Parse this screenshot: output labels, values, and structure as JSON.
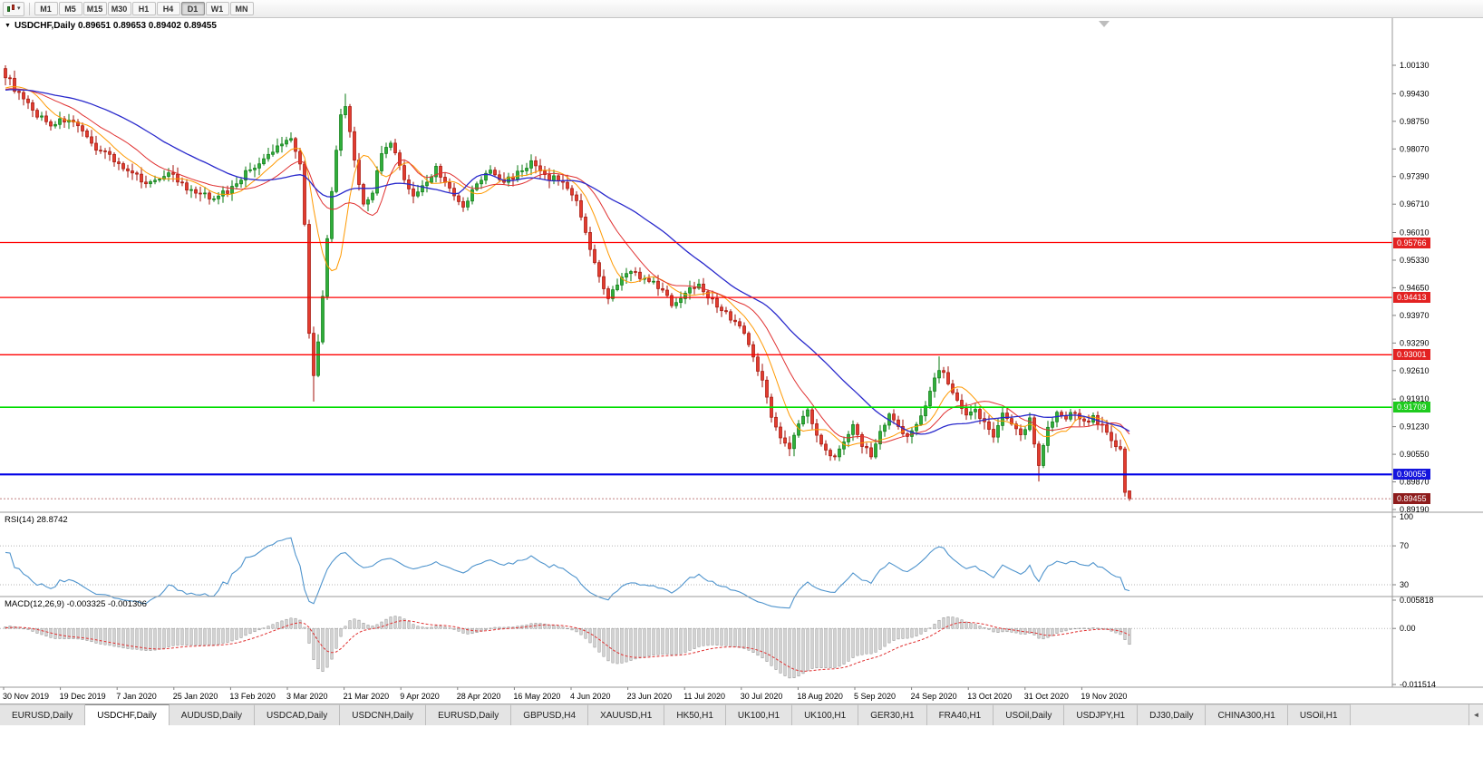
{
  "toolbar": {
    "timeframes": [
      {
        "label": "M1",
        "active": false
      },
      {
        "label": "M5",
        "active": false
      },
      {
        "label": "M15",
        "active": false
      },
      {
        "label": "M30",
        "active": false
      },
      {
        "label": "H1",
        "active": false
      },
      {
        "label": "H4",
        "active": false
      },
      {
        "label": "D1",
        "active": true
      },
      {
        "label": "W1",
        "active": false
      },
      {
        "label": "MN",
        "active": false
      }
    ],
    "dropdown_caret": "▾"
  },
  "chart_window": {
    "collapse_icon": "▼",
    "title": "USDCHF,Daily 0.89651 0.89653 0.89402 0.89455"
  },
  "chart_data": {
    "type": "candlestick",
    "symbol": "USDCHF",
    "timeframe": "Daily",
    "ohlc_display": {
      "open": "0.89651",
      "high": "0.89653",
      "low": "0.89402",
      "close": "0.89455"
    },
    "price_axis_labels": [
      "1.00130",
      "0.99430",
      "0.98750",
      "0.98070",
      "0.97390",
      "0.96710",
      "0.96010",
      "0.95330",
      "0.94650",
      "0.93970",
      "0.93290",
      "0.92610",
      "0.91910",
      "0.91230",
      "0.90550",
      "0.89870",
      "0.89190"
    ],
    "date_axis_labels": [
      "30 Nov 2019",
      "19 Dec 2019",
      "7 Jan 2020",
      "25 Jan 2020",
      "13 Feb 2020",
      "3 Mar 2020",
      "21 Mar 2020",
      "9 Apr 2020",
      "28 Apr 2020",
      "16 May 2020",
      "4 Jun 2020",
      "23 Jun 2020",
      "11 Jul 2020",
      "30 Jul 2020",
      "18 Aug 2020",
      "5 Sep 2020",
      "24 Sep 2020",
      "13 Oct 2020",
      "31 Oct 2020",
      "19 Nov 2020"
    ],
    "horizontal_lines": [
      {
        "price": 0.95766,
        "label": "0.95766",
        "line_color": "#ff0000",
        "label_bg": "#e32222",
        "width": 1.3
      },
      {
        "price": 0.94413,
        "label": "0.94413",
        "line_color": "#ff0000",
        "label_bg": "#e32222",
        "width": 1.3
      },
      {
        "price": 0.93001,
        "label": "0.93001",
        "line_color": "#ff0000",
        "label_bg": "#e32222",
        "width": 1.3
      },
      {
        "price": 0.91709,
        "label": "0.91709",
        "line_color": "#00dd00",
        "label_bg": "#1ecb1e",
        "width": 1.6
      },
      {
        "price": 0.90055,
        "label": "0.90055",
        "line_color": "#0000e6",
        "label_bg": "#1515dd",
        "width": 2.2
      }
    ],
    "current_price": {
      "value": 0.89455,
      "label": "0.89455",
      "line_color": "#c08080",
      "label_bg": "#8e1c1c"
    },
    "colors": {
      "up_fill": "#2fae3a",
      "up_stroke": "#0a7a12",
      "down_fill": "#e23b2e",
      "down_stroke": "#a31208",
      "background": "#ffffff",
      "axis_text": "#000000",
      "separator": "#9a9a9a"
    },
    "candles": {
      "count": 249,
      "prehistory_count": 40,
      "prehistory_price": 0.995,
      "jitter": 0.0016,
      "wick": 0.0019,
      "close_anchors": [
        [
          0,
          0.999
        ],
        [
          3,
          0.994
        ],
        [
          6,
          0.99
        ],
        [
          10,
          0.9868
        ],
        [
          14,
          0.9882
        ],
        [
          19,
          0.9818
        ],
        [
          23,
          0.9792
        ],
        [
          27,
          0.9748
        ],
        [
          32,
          0.9722
        ],
        [
          36,
          0.9752
        ],
        [
          40,
          0.9705
        ],
        [
          45,
          0.9688
        ],
        [
          49,
          0.9702
        ],
        [
          53,
          0.9748
        ],
        [
          57,
          0.9778
        ],
        [
          60,
          0.9812
        ],
        [
          63,
          0.9838
        ],
        [
          65,
          0.977
        ],
        [
          66,
          0.962
        ],
        [
          67,
          0.936
        ],
        [
          68,
          0.9255
        ],
        [
          69,
          0.933
        ],
        [
          70,
          0.944
        ],
        [
          71,
          0.958
        ],
        [
          72,
          0.97
        ],
        [
          73,
          0.981
        ],
        [
          74,
          0.9885
        ],
        [
          75,
          0.9905
        ],
        [
          77,
          0.978
        ],
        [
          79,
          0.9665
        ],
        [
          81,
          0.9705
        ],
        [
          83,
          0.979
        ],
        [
          85,
          0.9822
        ],
        [
          87,
          0.976
        ],
        [
          90,
          0.969
        ],
        [
          93,
          0.9725
        ],
        [
          95,
          0.9762
        ],
        [
          98,
          0.9705
        ],
        [
          101,
          0.966
        ],
        [
          104,
          0.9722
        ],
        [
          107,
          0.9752
        ],
        [
          110,
          0.9725
        ],
        [
          113,
          0.9748
        ],
        [
          116,
          0.9772
        ],
        [
          119,
          0.9738
        ],
        [
          122,
          0.9732
        ],
        [
          125,
          0.97
        ],
        [
          127,
          0.9645
        ],
        [
          129,
          0.9565
        ],
        [
          131,
          0.9485
        ],
        [
          133,
          0.9435
        ],
        [
          135,
          0.9472
        ],
        [
          138,
          0.9512
        ],
        [
          141,
          0.9482
        ],
        [
          144,
          0.947
        ],
        [
          147,
          0.9425
        ],
        [
          150,
          0.9452
        ],
        [
          153,
          0.9478
        ],
        [
          156,
          0.9432
        ],
        [
          159,
          0.9402
        ],
        [
          162,
          0.9372
        ],
        [
          165,
          0.9302
        ],
        [
          167,
          0.9232
        ],
        [
          169,
          0.9152
        ],
        [
          171,
          0.9102
        ],
        [
          173,
          0.9065
        ],
        [
          175,
          0.9132
        ],
        [
          177,
          0.916
        ],
        [
          179,
          0.9102
        ],
        [
          181,
          0.9072
        ],
        [
          183,
          0.9045
        ],
        [
          185,
          0.9092
        ],
        [
          187,
          0.9122
        ],
        [
          189,
          0.9082
        ],
        [
          191,
          0.9052
        ],
        [
          193,
          0.9112
        ],
        [
          195,
          0.9152
        ],
        [
          197,
          0.9122
        ],
        [
          199,
          0.9092
        ],
        [
          201,
          0.9132
        ],
        [
          203,
          0.9182
        ],
        [
          205,
          0.924
        ],
        [
          206,
          0.9268
        ],
        [
          208,
          0.9232
        ],
        [
          210,
          0.9182
        ],
        [
          212,
          0.9145
        ],
        [
          214,
          0.9162
        ],
        [
          216,
          0.9132
        ],
        [
          218,
          0.9105
        ],
        [
          220,
          0.9152
        ],
        [
          222,
          0.9132
        ],
        [
          224,
          0.9105
        ],
        [
          226,
          0.9142
        ],
        [
          228,
          0.9032
        ],
        [
          230,
          0.9122
        ],
        [
          232,
          0.9162
        ],
        [
          234,
          0.9142
        ],
        [
          236,
          0.9162
        ],
        [
          238,
          0.9132
        ],
        [
          240,
          0.9152
        ],
        [
          242,
          0.9122
        ],
        [
          244,
          0.9092
        ],
        [
          246,
          0.9062
        ],
        [
          247,
          0.8968
        ],
        [
          248,
          0.89455
        ]
      ],
      "ohlc_overrides": {
        "0": {
          "o": 1.0005,
          "h": 1.0013
        },
        "68": {
          "l": 0.9185
        },
        "75": {
          "h": 0.9943
        },
        "206": {
          "h": 0.9296
        },
        "228": {
          "l": 0.8988
        },
        "247": {
          "l": 0.8951
        },
        "248": {
          "o": 0.89651,
          "h": 0.89653,
          "l": 0.89402,
          "c": 0.89455
        }
      }
    },
    "ma_lines": [
      {
        "period": 8,
        "color": "#ff9900",
        "width": 1
      },
      {
        "period": 16,
        "color": "#e03030",
        "width": 1
      },
      {
        "period": 34,
        "color": "#2929cc",
        "width": 1.3
      }
    ],
    "rsi": {
      "label": "RSI(14) 28.8742",
      "period": 14,
      "value": 28.8742,
      "line_color": "#4f94cd",
      "levels": [
        {
          "value": 100,
          "label": "100"
        },
        {
          "value": 70,
          "label": "70"
        },
        {
          "value": 30,
          "label": "30"
        }
      ],
      "dotted_levels": [
        70,
        30
      ]
    },
    "macd": {
      "label": "MACD(12,26,9) -0.003325 -0.001306",
      "fast": 12,
      "slow": 26,
      "signal_period": 9,
      "main_value": -0.003325,
      "signal_value": -0.001306,
      "histogram_fill": "#d6d6d6",
      "histogram_stroke": "#8c8c8c",
      "signal_color": "#e03030",
      "axis": [
        {
          "value": 0.005818,
          "label": "0.005818"
        },
        {
          "value": 0,
          "label": "0.00"
        },
        {
          "value": -0.011514,
          "label": "-0.011514"
        }
      ]
    }
  },
  "tabs": {
    "scroll_icon": "◄",
    "items": [
      {
        "label": "EURUSD,Daily",
        "active": false
      },
      {
        "label": "USDCHF,Daily",
        "active": true
      },
      {
        "label": "AUDUSD,Daily",
        "active": false
      },
      {
        "label": "USDCAD,Daily",
        "active": false
      },
      {
        "label": "USDCNH,Daily",
        "active": false
      },
      {
        "label": "EURUSD,Daily",
        "active": false
      },
      {
        "label": "GBPUSD,H4",
        "active": false
      },
      {
        "label": "XAUUSD,H1",
        "active": false
      },
      {
        "label": "HK50,H1",
        "active": false
      },
      {
        "label": "UK100,H1",
        "active": false
      },
      {
        "label": "UK100,H1",
        "active": false
      },
      {
        "label": "GER30,H1",
        "active": false
      },
      {
        "label": "FRA40,H1",
        "active": false
      },
      {
        "label": "USOil,Daily",
        "active": false
      },
      {
        "label": "USDJPY,H1",
        "active": false
      },
      {
        "label": "DJ30,Daily",
        "active": false
      },
      {
        "label": "CHINA300,H1",
        "active": false
      },
      {
        "label": "USOil,H1",
        "active": false
      }
    ]
  }
}
